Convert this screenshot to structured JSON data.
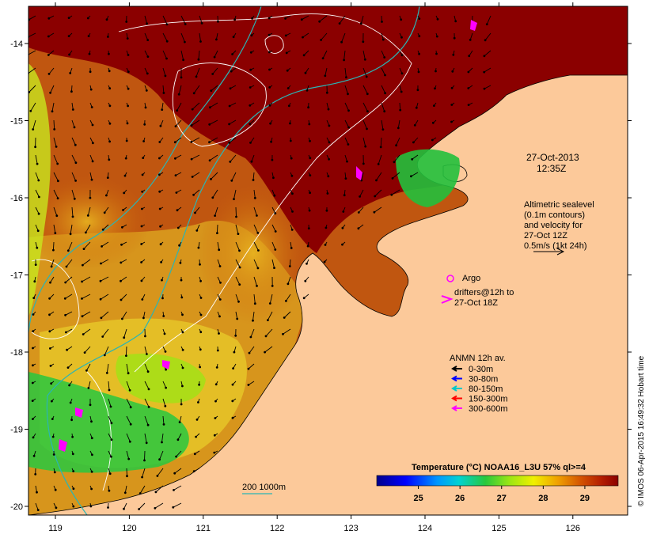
{
  "map": {
    "x_ticks": [
      "119",
      "120",
      "121",
      "122",
      "123",
      "124",
      "125",
      "126"
    ],
    "y_ticks": [
      "-14",
      "-15",
      "-16",
      "-17",
      "-18",
      "-19",
      "-20"
    ],
    "colors": {
      "land": "#fcc99a",
      "sst_high": "#8b0000",
      "sst_mid": "#c85a08",
      "sst_low": "#d9a21a",
      "cool_green": "#22c03c",
      "isobath_line": "#2ab5b5",
      "sealevel_contour": "#ffffff"
    }
  },
  "annotations": {
    "date_line1": "27-Oct-2013",
    "date_line2": "12:35Z",
    "altimetric": [
      "Altimetric sealevel",
      "(0.1m contours)",
      "and velocity for",
      "27-Oct 12Z",
      "0.5m/s (1kt 24h)"
    ],
    "argo_label": "Argo",
    "drifters_line1": "drifters@12h to",
    "drifters_line2": "27-Oct 18Z",
    "anmn_title": "ANMN 12h av.",
    "anmn_items": [
      {
        "label": "0-30m",
        "color": "#000000"
      },
      {
        "label": "30-80m",
        "color": "#0000ff"
      },
      {
        "label": "80-150m",
        "color": "#00c8c8"
      },
      {
        "label": "150-300m",
        "color": "#ff0000"
      },
      {
        "label": "300-600m",
        "color": "#ff00ff"
      }
    ],
    "isobath_label": "200  1000m",
    "credit": "© IMOS 06-Apr-2015 16:49:32 Hobart time"
  },
  "colorbar": {
    "title": "Temperature (°C) NOAA16_L3U 57% ql>=4",
    "ticks": [
      "25",
      "26",
      "27",
      "28",
      "29"
    ],
    "range": [
      24,
      29.8
    ]
  }
}
